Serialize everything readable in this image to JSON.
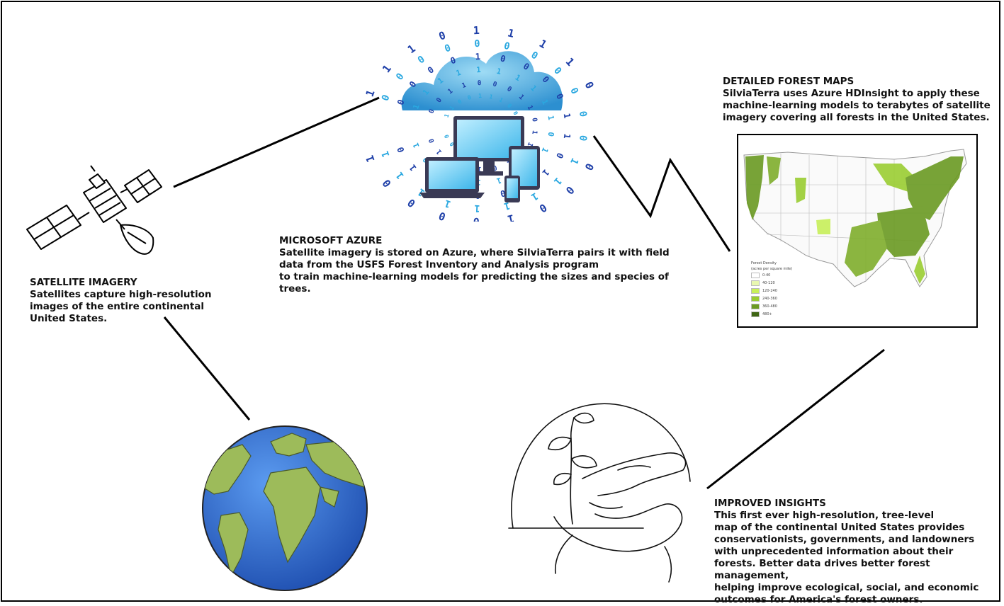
{
  "satellite": {
    "heading": "SATELLITE IMAGERY",
    "lines": [
      "Satellites capture high-resolution",
      "images of the entire continental",
      "United States."
    ]
  },
  "azure": {
    "heading": "MICROSOFT AZURE",
    "lines": [
      "Satellite imagery is stored on Azure, where SilviaTerra pairs it with field",
      "data from the USFS Forest Inventory and Analysis program",
      "to train machine-learning models for predicting the sizes and species of",
      "trees."
    ]
  },
  "maps": {
    "heading": "DETAILED FOREST MAPS",
    "lines": [
      "SilviaTerra uses Azure HDInsight to apply these",
      "machine-learning models to terabytes of satellite",
      "imagery covering all forests in the United States."
    ]
  },
  "insights": {
    "heading": "IMPROVED INSIGHTS",
    "lines": [
      "This first ever high-resolution, tree-level",
      "map of the continental United States provides",
      "conservationists, governments, and landowners",
      "with unprecedented information about their",
      "forests. Better data drives better forest management,",
      "helping improve ecological, social, and economic",
      "outcomes for America's forest owners."
    ]
  },
  "map_legend": {
    "title_lines": [
      "Forest Density",
      "(acres per square mile)"
    ],
    "entries": [
      {
        "label": "0-40",
        "color": "#ffffff"
      },
      {
        "label": "40-120",
        "color": "#e8f7b0"
      },
      {
        "label": "120-240",
        "color": "#c8f05a"
      },
      {
        "label": "240-360",
        "color": "#9acd32"
      },
      {
        "label": "360-480",
        "color": "#6b9a22"
      },
      {
        "label": "480+",
        "color": "#3f6614"
      }
    ]
  },
  "binary_digits": [
    "1",
    "0",
    "1",
    "0",
    "0",
    "1",
    "1",
    "0",
    "1",
    "0",
    "0",
    "1",
    "0",
    "1",
    "1",
    "0",
    "0",
    "1",
    "0",
    "1",
    "1",
    "0",
    "0",
    "0",
    "1",
    "0",
    "1",
    "1",
    "0",
    "1"
  ],
  "colors": {
    "cloud": "#3aa3dc",
    "binary": "#1e3fa8",
    "binary_light": "#2aa8e0",
    "device": "#3a3a55",
    "screen": "#5cc8f0",
    "ocean": "#2f6fd6",
    "land": "#9dbb5a",
    "forest": "#6b9a22"
  }
}
